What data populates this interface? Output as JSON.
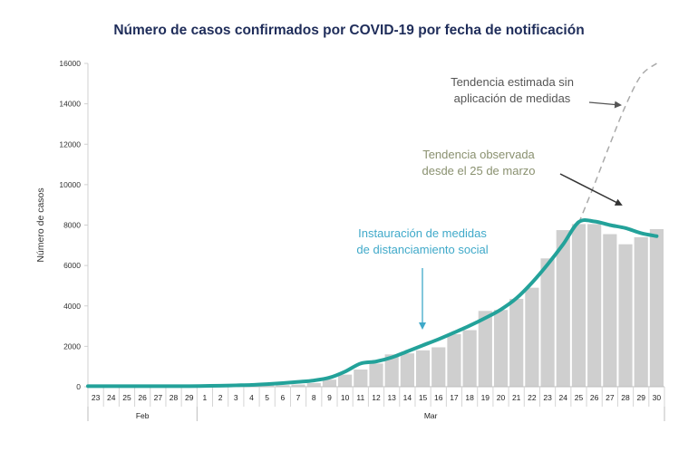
{
  "chart_data": {
    "type": "bar",
    "title": "Número de casos confirmados por COVID-19 por fecha de notificación",
    "ylabel": "Número de casos",
    "xlabel": "",
    "ylim": [
      0,
      16000
    ],
    "yticks": [
      0,
      2000,
      4000,
      6000,
      8000,
      10000,
      12000,
      14000,
      16000
    ],
    "grid": false,
    "categories": [
      "23",
      "24",
      "25",
      "26",
      "27",
      "28",
      "29",
      "1",
      "2",
      "3",
      "4",
      "5",
      "6",
      "7",
      "8",
      "9",
      "10",
      "11",
      "12",
      "13",
      "14",
      "15",
      "16",
      "17",
      "18",
      "19",
      "20",
      "21",
      "22",
      "23",
      "24",
      "25",
      "26",
      "27",
      "28",
      "29",
      "30"
    ],
    "month_groups": [
      {
        "label": "Feb",
        "first": 0,
        "last": 6
      },
      {
        "label": "Mar",
        "first": 7,
        "last": 36
      }
    ],
    "series": [
      {
        "type": "bar",
        "color": "#cfcfcf",
        "values": [
          2,
          3,
          3,
          5,
          8,
          10,
          15,
          20,
          25,
          30,
          45,
          60,
          80,
          110,
          180,
          350,
          600,
          850,
          1150,
          1600,
          1650,
          1800,
          1950,
          2600,
          2800,
          3750,
          3800,
          4350,
          4900,
          6350,
          7750,
          8050,
          8050,
          7550,
          7050,
          7400,
          7800
        ]
      },
      {
        "type": "line",
        "color": "#23a29a",
        "values": [
          30,
          30,
          30,
          30,
          30,
          30,
          30,
          40,
          50,
          70,
          90,
          130,
          180,
          240,
          310,
          450,
          750,
          1150,
          1250,
          1450,
          1750,
          2050,
          2350,
          2680,
          3020,
          3400,
          3820,
          4380,
          5150,
          6050,
          7050,
          8150,
          8180,
          8000,
          7850,
          7600,
          7450
        ]
      },
      {
        "type": "line",
        "style": "dashed",
        "color": "#aaaaaa",
        "values": [
          null,
          null,
          null,
          null,
          null,
          null,
          null,
          null,
          null,
          null,
          null,
          null,
          null,
          null,
          null,
          null,
          null,
          null,
          null,
          null,
          null,
          null,
          null,
          null,
          null,
          null,
          null,
          null,
          null,
          null,
          null,
          8100,
          10000,
          12000,
          13900,
          15400,
          16000
        ]
      }
    ],
    "annotations": [
      {
        "text": "Tendencia estimada sin aplicación de medidas",
        "lines": [
          "Tendencia estimada sin",
          "aplicación de medidas"
        ],
        "color": "#555555"
      },
      {
        "text": "Tendencia observada desde el 25 de marzo",
        "lines": [
          "Tendencia observada",
          "desde el 25 de marzo"
        ],
        "color": "#8a9170"
      },
      {
        "text": "Instauración de medidas de distanciamiento social",
        "lines": [
          "Instauración de medidas",
          "de distanciamiento social"
        ],
        "color": "#3fa9c9"
      }
    ]
  }
}
